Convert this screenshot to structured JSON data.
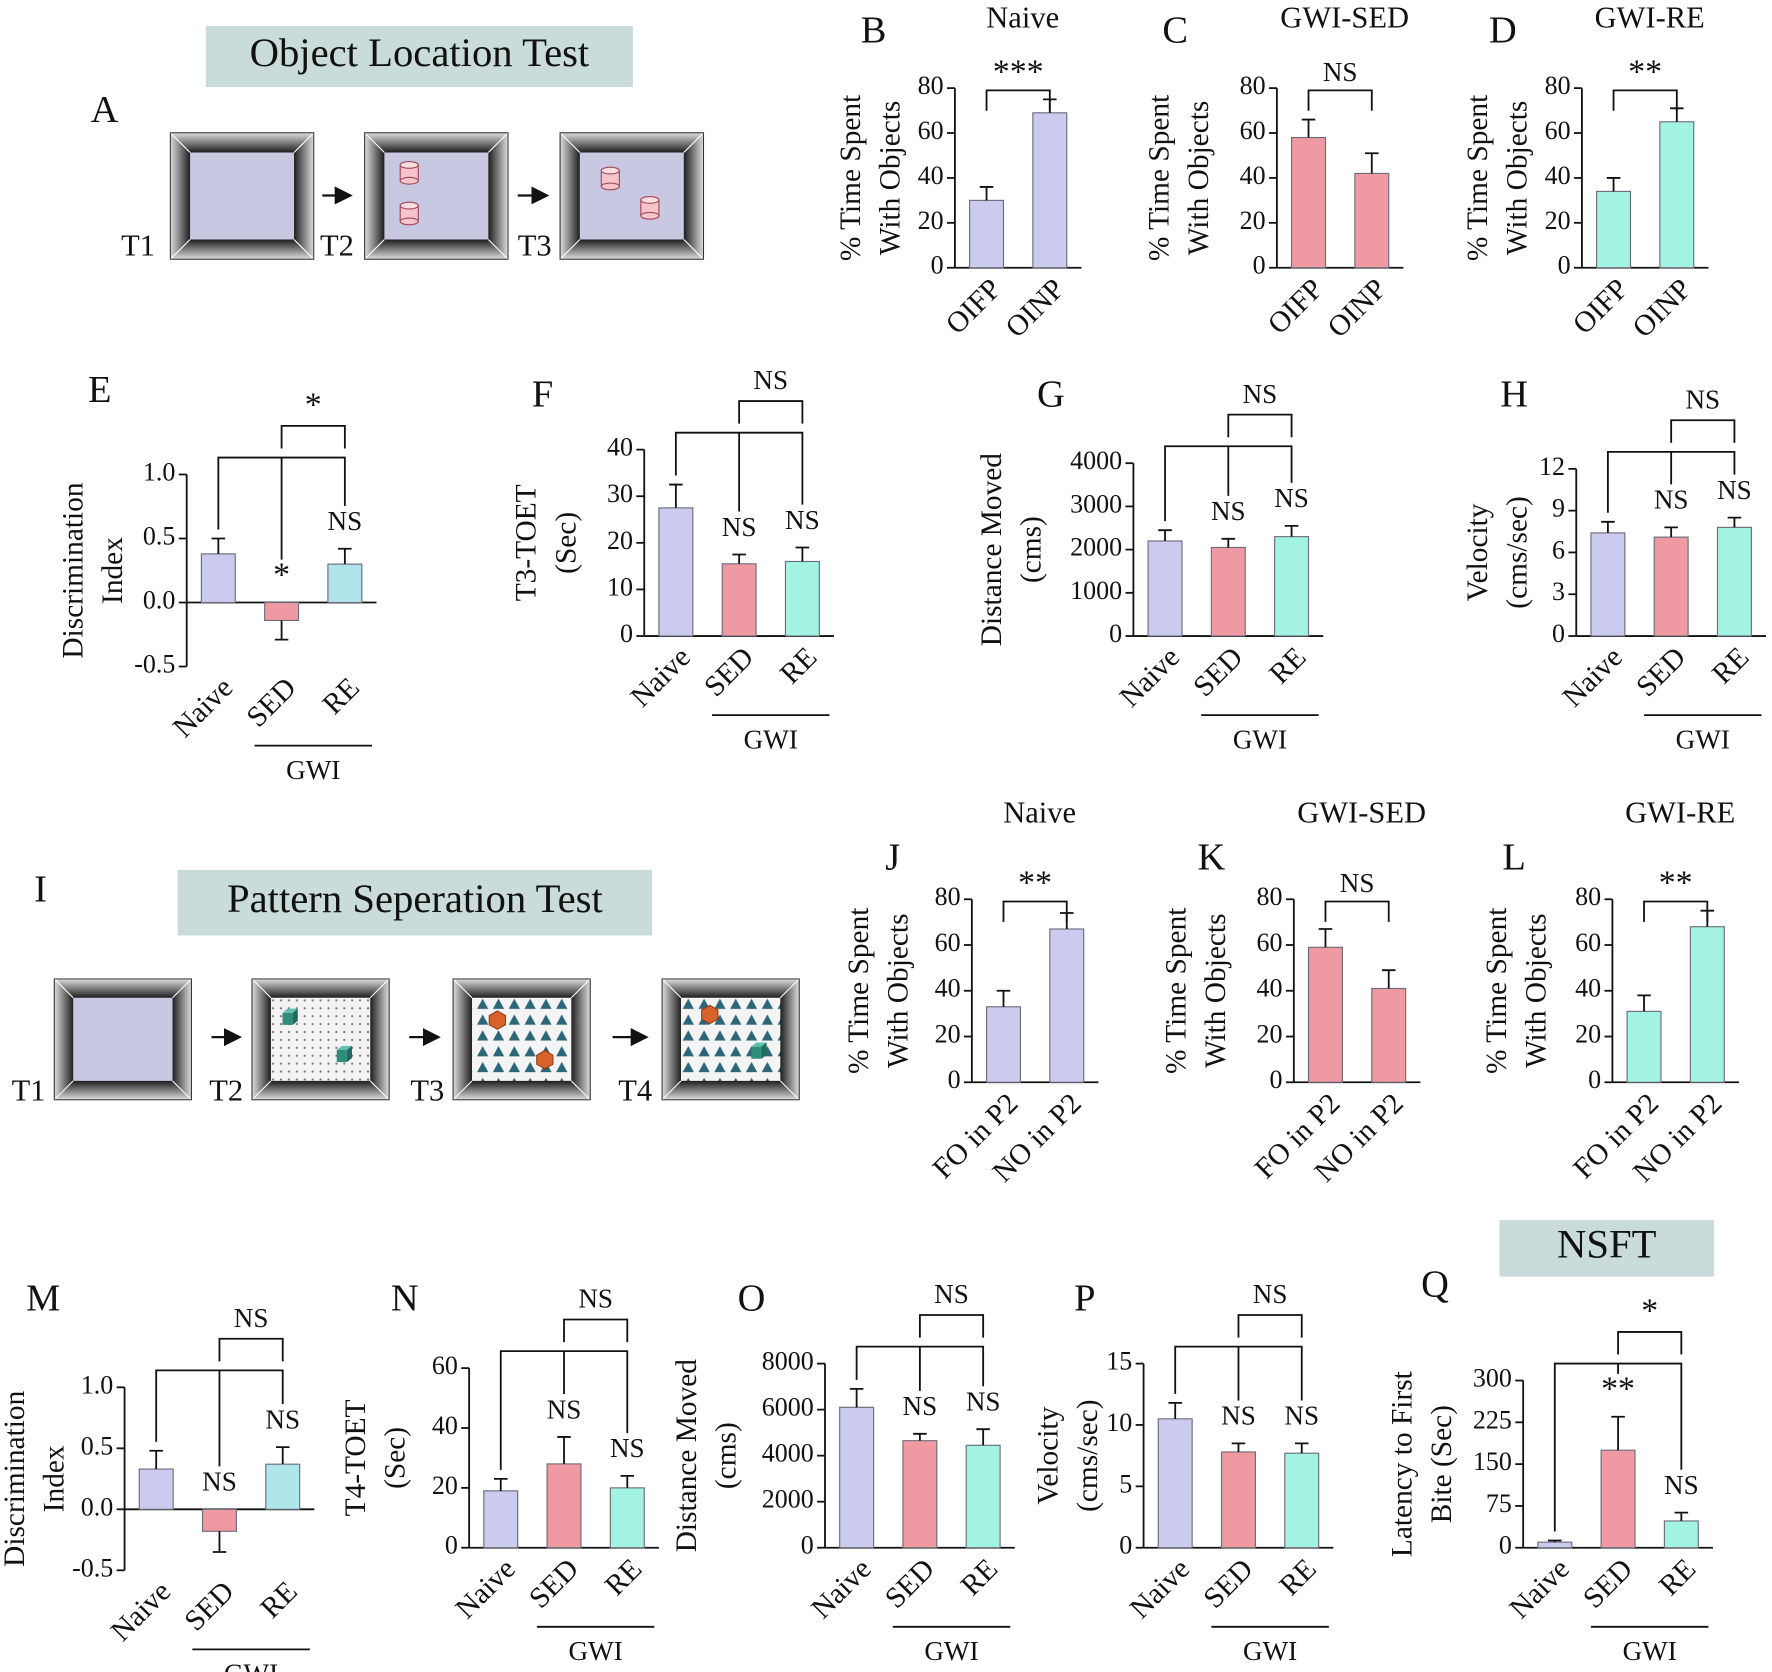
{
  "diagrams": [
    {
      "panel": "A",
      "title": "Object Location Test",
      "stages": [
        "T1",
        "T2",
        "T3"
      ]
    },
    {
      "panel": "I",
      "title": "Pattern Seperation Test",
      "stages": [
        "T1",
        "T2",
        "T3",
        "T4"
      ]
    }
  ],
  "chart_data": [
    {
      "type": "bar",
      "panel": "B",
      "title": "Naive",
      "ylabel": [
        "% Time Spent",
        "With Objects"
      ],
      "categories": [
        "OIFP",
        "OINP"
      ],
      "values": [
        30,
        69
      ],
      "errors": [
        6,
        6
      ],
      "colors": [
        "#cbcbf0",
        "#cbcbf0"
      ],
      "ylim": [
        0,
        80
      ],
      "yticks": [
        0,
        20,
        40,
        60,
        80
      ],
      "bracket_label": "***"
    },
    {
      "type": "bar",
      "panel": "C",
      "title": "GWI-SED",
      "ylabel": [
        "% Time Spent",
        "With Objects"
      ],
      "categories": [
        "OIFP",
        "OINP"
      ],
      "values": [
        58,
        42
      ],
      "errors": [
        8,
        9
      ],
      "colors": [
        "#ef9aa3",
        "#ef9aa3"
      ],
      "ylim": [
        0,
        80
      ],
      "yticks": [
        0,
        20,
        40,
        60,
        80
      ],
      "bracket_label": "NS"
    },
    {
      "type": "bar",
      "panel": "D",
      "title": "GWI-RE",
      "ylabel": [
        "% Time Spent",
        "With Objects"
      ],
      "categories": [
        "OIFP",
        "OINP"
      ],
      "values": [
        34,
        65
      ],
      "errors": [
        6,
        6
      ],
      "colors": [
        "#a2f3e2",
        "#a2f3e2"
      ],
      "ylim": [
        0,
        80
      ],
      "yticks": [
        0,
        20,
        40,
        60,
        80
      ],
      "bracket_label": "**"
    },
    {
      "type": "bar",
      "panel": "E",
      "ylabel": [
        "Discrimination",
        "Index"
      ],
      "categories": [
        "Naive",
        "SED",
        "RE"
      ],
      "group": "GWI",
      "values": [
        0.38,
        -0.14,
        0.3
      ],
      "errors": [
        0.12,
        0.15,
        0.12
      ],
      "colors": [
        "#cbcbf0",
        "#ef9aa3",
        "#b2e4ec"
      ],
      "ylim": [
        -0.5,
        1
      ],
      "yticks": [
        -0.5,
        {
          "value": 0,
          "label": "0.0"
        },
        0.5,
        {
          "value": 1,
          "label": "1.0"
        }
      ],
      "bar_labels": [
        null,
        "*",
        "NS"
      ],
      "bracket_label": "*"
    },
    {
      "type": "bar",
      "panel": "F",
      "ylabel": [
        "T3-TOET",
        "(Sec)"
      ],
      "categories": [
        "Naive",
        "SED",
        "RE"
      ],
      "group": "GWI",
      "values": [
        27.5,
        15.5,
        16
      ],
      "errors": [
        5,
        2,
        3
      ],
      "colors": [
        "#cbcbf0",
        "#ef9aa3",
        "#a2f3e2"
      ],
      "ylim": [
        0,
        40
      ],
      "yticks": [
        0,
        10,
        20,
        30,
        40
      ],
      "bar_labels": [
        null,
        "NS",
        "NS"
      ],
      "bracket_label": "NS"
    },
    {
      "type": "bar",
      "panel": "G",
      "ylabel": [
        "Distance Moved",
        "(cms)"
      ],
      "categories": [
        "Naive",
        "SED",
        "RE"
      ],
      "group": "GWI",
      "values": [
        2200,
        2050,
        2300
      ],
      "errors": [
        250,
        200,
        250
      ],
      "colors": [
        "#cbcbf0",
        "#ef9aa3",
        "#a2f3e2"
      ],
      "ylim": [
        0,
        4000
      ],
      "yticks": [
        0,
        1000,
        2000,
        3000,
        4000
      ],
      "bar_labels": [
        null,
        "NS",
        "NS"
      ],
      "bracket_label": "NS"
    },
    {
      "type": "bar",
      "panel": "H",
      "ylabel": [
        "Velocity",
        "(cms/sec)"
      ],
      "categories": [
        "Naive",
        "SED",
        "RE"
      ],
      "group": "GWI",
      "values": [
        7.4,
        7.1,
        7.8
      ],
      "errors": [
        0.8,
        0.7,
        0.7
      ],
      "colors": [
        "#cbcbf0",
        "#ef9aa3",
        "#a2f3e2"
      ],
      "ylim": [
        0,
        12
      ],
      "yticks": [
        0,
        3,
        6,
        9,
        12
      ],
      "bar_labels": [
        null,
        "NS",
        "NS"
      ],
      "bracket_label": "NS"
    },
    {
      "type": "bar",
      "panel": "J",
      "title": "Naive",
      "ylabel": [
        "% Time Spent",
        "With Objects"
      ],
      "categories": [
        "FO in P2",
        "NO in P2"
      ],
      "values": [
        33,
        67
      ],
      "errors": [
        7,
        7
      ],
      "colors": [
        "#cbcbf0",
        "#cbcbf0"
      ],
      "ylim": [
        0,
        80
      ],
      "yticks": [
        0,
        20,
        40,
        60,
        80
      ],
      "bracket_label": "**"
    },
    {
      "type": "bar",
      "panel": "K",
      "title": "GWI-SED",
      "ylabel": [
        "% Time Spent",
        "With Objects"
      ],
      "categories": [
        "FO in P2",
        "NO in P2"
      ],
      "values": [
        59,
        41
      ],
      "errors": [
        8,
        8
      ],
      "colors": [
        "#ef9aa3",
        "#ef9aa3"
      ],
      "ylim": [
        0,
        80
      ],
      "yticks": [
        0,
        20,
        40,
        60,
        80
      ],
      "bracket_label": "NS"
    },
    {
      "type": "bar",
      "panel": "L",
      "title": "GWI-RE",
      "ylabel": [
        "% Time Spent",
        "With Objects"
      ],
      "categories": [
        "FO in P2",
        "NO in P2"
      ],
      "values": [
        31,
        68
      ],
      "errors": [
        7,
        7
      ],
      "colors": [
        "#a2f3e2",
        "#a2f3e2"
      ],
      "ylim": [
        0,
        80
      ],
      "yticks": [
        0,
        20,
        40,
        60,
        80
      ],
      "bracket_label": "**"
    },
    {
      "type": "bar",
      "panel": "M",
      "ylabel": [
        "Discrimination",
        "Index"
      ],
      "categories": [
        "Naive",
        "SED",
        "RE"
      ],
      "group": "GWI",
      "values": [
        0.33,
        -0.18,
        0.37
      ],
      "errors": [
        0.15,
        0.17,
        0.14
      ],
      "colors": [
        "#cbcbf0",
        "#ef9aa3",
        "#aee6ec"
      ],
      "ylim": [
        -0.5,
        1
      ],
      "yticks": [
        -0.5,
        {
          "value": 0,
          "label": "0.0"
        },
        0.5,
        {
          "value": 1,
          "label": "1.0"
        }
      ],
      "bar_labels": [
        null,
        "NS",
        "NS"
      ],
      "bracket_label": "NS"
    },
    {
      "type": "bar",
      "panel": "N",
      "ylabel": [
        "T4-TOET",
        "(Sec)"
      ],
      "categories": [
        "Naive",
        "SED",
        "RE"
      ],
      "group": "GWI",
      "values": [
        19,
        28,
        20
      ],
      "errors": [
        4,
        9,
        4
      ],
      "colors": [
        "#cbcbf0",
        "#ef9aa3",
        "#a2f3e2"
      ],
      "ylim": [
        0,
        60
      ],
      "yticks": [
        0,
        20,
        40,
        60
      ],
      "bar_labels": [
        "",
        "NS",
        "NS"
      ],
      "bracket_label": "NS"
    },
    {
      "type": "bar",
      "panel": "O",
      "ylabel": [
        "Distance Moved",
        "(cms)"
      ],
      "categories": [
        "Naive",
        "SED",
        "RE"
      ],
      "group": "GWI",
      "values": [
        6100,
        4650,
        4450
      ],
      "errors": [
        800,
        300,
        700
      ],
      "colors": [
        "#cbcbf0",
        "#ef9aa3",
        "#a2f3e2"
      ],
      "ylim": [
        0,
        8000
      ],
      "yticks": [
        0,
        2000,
        4000,
        6000,
        8000
      ],
      "bar_labels": [
        null,
        "NS",
        "NS"
      ],
      "bracket_label": "NS"
    },
    {
      "type": "bar",
      "panel": "P",
      "ylabel": [
        "Velocity",
        "(cms/sec)"
      ],
      "categories": [
        "Naive",
        "SED",
        "RE"
      ],
      "group": "GWI",
      "values": [
        10.5,
        7.8,
        7.7
      ],
      "errors": [
        1.3,
        0.7,
        0.8
      ],
      "colors": [
        "#cbcbf0",
        "#ef9aa3",
        "#a2f3e2"
      ],
      "ylim": [
        0,
        15
      ],
      "yticks": [
        0,
        5,
        10,
        15
      ],
      "bar_labels": [
        null,
        "NS",
        "NS"
      ],
      "bracket_label": "NS"
    },
    {
      "type": "bar",
      "panel": "Q",
      "title": "NSFT",
      "title_box": true,
      "ylabel": [
        "Latency to First",
        "Bite (Sec)"
      ],
      "categories": [
        "Naive",
        "SED",
        "RE"
      ],
      "group": "GWI",
      "values": [
        10,
        175,
        48
      ],
      "errors": [
        3,
        60,
        15
      ],
      "colors": [
        "#cbcbf0",
        "#ef9aa3",
        "#a2f3e2"
      ],
      "ylim": [
        0,
        300
      ],
      "yticks": [
        0,
        75,
        150,
        225,
        300
      ],
      "bar_labels": [
        null,
        "**",
        "NS"
      ],
      "bracket_label": "*"
    }
  ]
}
